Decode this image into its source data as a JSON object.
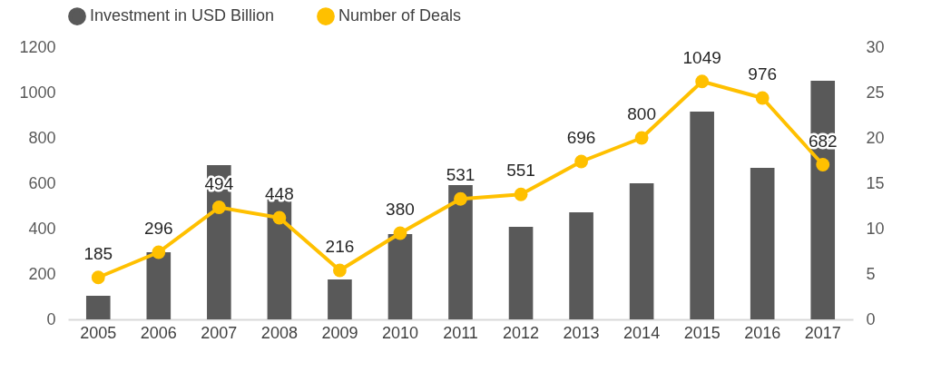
{
  "chart_data": {
    "type": "bar",
    "categories": [
      "2005",
      "2006",
      "2007",
      "2008",
      "2009",
      "2010",
      "2011",
      "2012",
      "2013",
      "2014",
      "2015",
      "2016",
      "2017"
    ],
    "series": [
      {
        "name": "Investment in USD Billion",
        "type": "bar",
        "axis": "y2",
        "color": "#595959",
        "values": [
          2.6,
          7.4,
          17.0,
          13.9,
          4.4,
          9.4,
          14.8,
          10.2,
          11.8,
          15.0,
          22.9,
          16.7,
          26.3
        ]
      },
      {
        "name": "Number of Deals",
        "type": "line",
        "axis": "y",
        "color": "#ffc000",
        "marker": "circle",
        "values": [
          185,
          296,
          494,
          448,
          216,
          380,
          531,
          551,
          696,
          800,
          1049,
          976,
          682
        ],
        "value_labels": [
          "185",
          "296",
          "494",
          "448",
          "216",
          "380",
          "531",
          "551",
          "696",
          "800",
          "1049",
          "976",
          "682"
        ]
      }
    ],
    "ylim": [
      0,
      1200
    ],
    "yticks": [
      0,
      200,
      400,
      600,
      800,
      1000,
      1200
    ],
    "y2lim": [
      0,
      30
    ],
    "y2ticks": [
      0,
      5,
      10,
      15,
      20,
      25,
      30
    ],
    "grid": false,
    "legend": "top"
  }
}
